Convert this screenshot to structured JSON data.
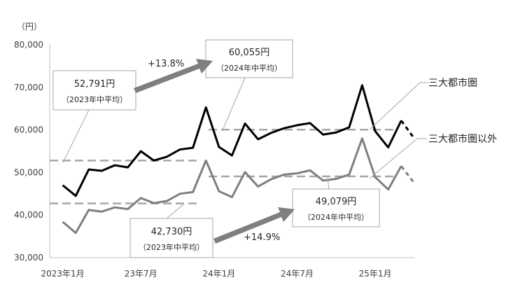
{
  "chart_data": {
    "type": "line",
    "unit_label": "（円）",
    "ylim": [
      30000,
      80000
    ],
    "y_ticks": [
      "30,000",
      "40,000",
      "50,000",
      "60,000",
      "70,000",
      "80,000"
    ],
    "x_labels": [
      {
        "index": 0,
        "label": "2023年1月"
      },
      {
        "index": 6,
        "label": "23年7月"
      },
      {
        "index": 12,
        "label": "24年1月"
      },
      {
        "index": 18,
        "label": "24年7月"
      },
      {
        "index": 24,
        "label": "25年1月"
      }
    ],
    "series": [
      {
        "name": "三大都市圏",
        "color": "#000000",
        "values": [
          47000,
          44500,
          50700,
          50400,
          51700,
          51200,
          55000,
          52800,
          53700,
          55400,
          55800,
          65300,
          56000,
          54000,
          61500,
          57800,
          59300,
          60400,
          61100,
          61600,
          58900,
          59400,
          60600,
          70500,
          59700,
          55900,
          62200,
          58000
        ]
      },
      {
        "name": "三大都市圏以外",
        "color": "#7f7f7f",
        "values": [
          38400,
          35800,
          41200,
          40800,
          41800,
          41400,
          44000,
          42800,
          43300,
          45000,
          45400,
          52800,
          45600,
          44200,
          50100,
          46700,
          48400,
          49500,
          49800,
          50500,
          48100,
          48500,
          49500,
          58000,
          48900,
          46000,
          51500,
          47500
        ]
      }
    ],
    "averages": [
      {
        "value": 52791,
        "label": "52,791円",
        "sub": "（2023年中平均）",
        "color": "#7f7f7f"
      },
      {
        "value": 60055,
        "label": "60,055円",
        "sub": "（2024年中平均）",
        "color": "#7f7f7f"
      },
      {
        "value": 42730,
        "label": "42,730円",
        "sub": "（2023年中平均）",
        "color": "#7f7f7f"
      },
      {
        "value": 49079,
        "label": "49,079円",
        "sub": "（2024年中平均）",
        "color": "#7f7f7f"
      }
    ],
    "changes": [
      "+13.8%",
      "+14.9%"
    ],
    "grid": false,
    "legend": "direct labels at right"
  }
}
